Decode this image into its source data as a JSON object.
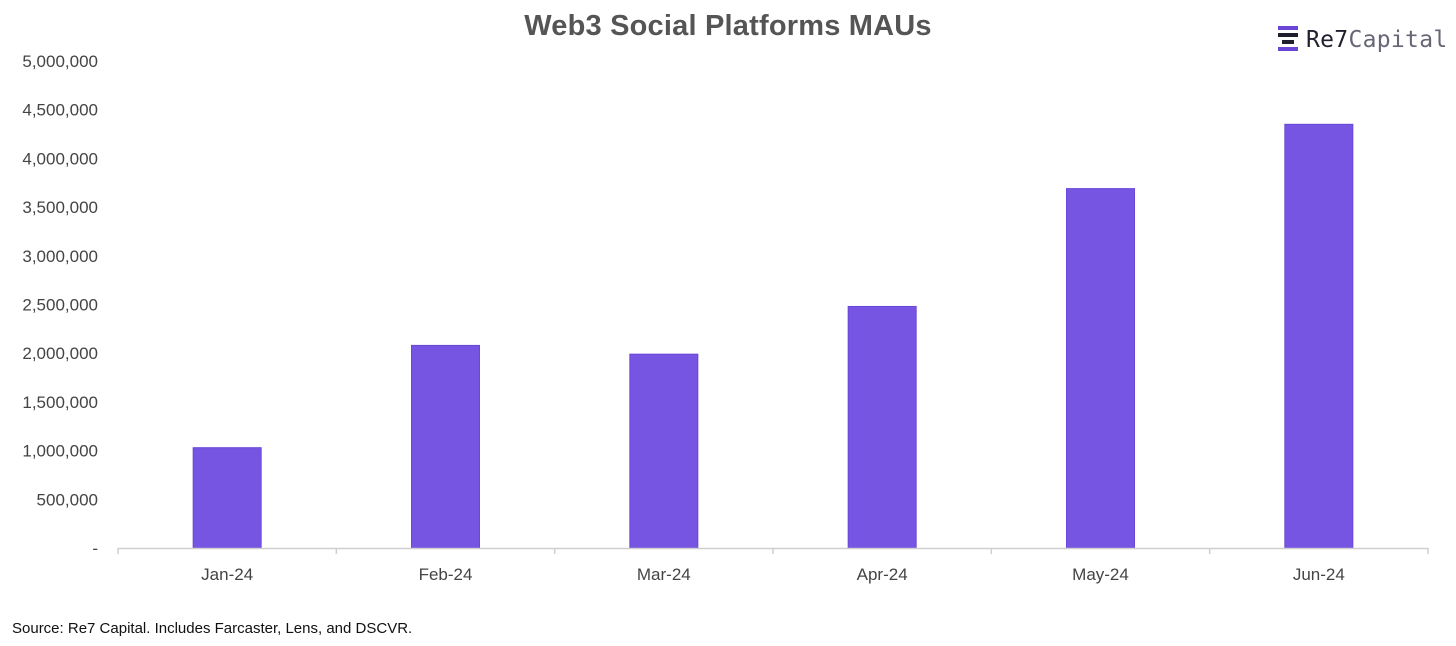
{
  "brand": {
    "name_bold": "Re7",
    "name_light": "Capital"
  },
  "source_note": "Source: Re7 Capital. Includes Farcaster, Lens, and DSCVR.",
  "colors": {
    "bar": "#7755E3",
    "bar_stroke": "#6a47d8",
    "axis": "#cfcfcf",
    "text": "#444444",
    "logo_purple": "#6b46d6",
    "logo_dark": "#1f1f2e"
  },
  "chart_data": {
    "type": "bar",
    "title": "Web3 Social Platforms MAUs",
    "xlabel": "",
    "ylabel": "",
    "categories": [
      "Jan-24",
      "Feb-24",
      "Mar-24",
      "Apr-24",
      "May-24",
      "Jun-24"
    ],
    "values": [
      1030000,
      2080000,
      1990000,
      2480000,
      3690000,
      4350000
    ],
    "ylim": [
      0,
      5000000
    ],
    "yticks": [
      0,
      500000,
      1000000,
      1500000,
      2000000,
      2500000,
      3000000,
      3500000,
      4000000,
      4500000,
      5000000
    ],
    "ytick_labels": [
      "-",
      "500,000",
      "1,000,000",
      "1,500,000",
      "2,000,000",
      "2,500,000",
      "3,000,000",
      "3,500,000",
      "4,000,000",
      "4,500,000",
      "5,000,000"
    ],
    "grid": false,
    "legend": "none"
  }
}
